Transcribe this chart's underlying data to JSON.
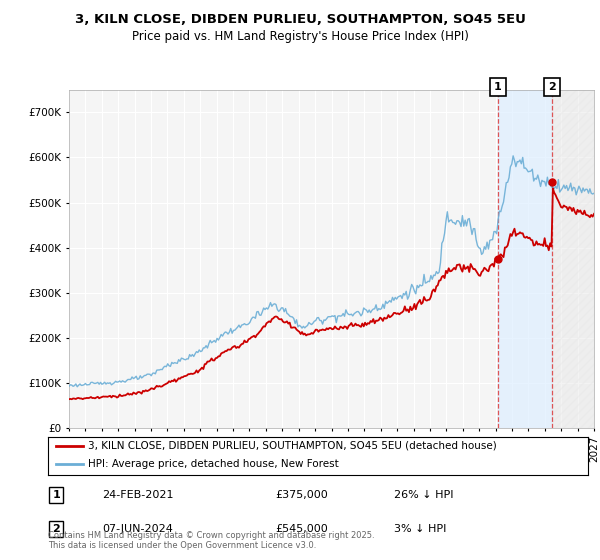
{
  "title_line1": "3, KILN CLOSE, DIBDEN PURLIEU, SOUTHAMPTON, SO45 5EU",
  "title_line2": "Price paid vs. HM Land Registry's House Price Index (HPI)",
  "ylim": [
    0,
    750000
  ],
  "yticks": [
    0,
    100000,
    200000,
    300000,
    400000,
    500000,
    600000,
    700000
  ],
  "ytick_labels": [
    "£0",
    "£100K",
    "£200K",
    "£300K",
    "£400K",
    "£500K",
    "£600K",
    "£700K"
  ],
  "transaction1_date": 2021.15,
  "transaction1_price": 375000,
  "transaction2_date": 2024.44,
  "transaction2_price": 545000,
  "hpi_color": "#6baed6",
  "price_color": "#cc0000",
  "legend_line1": "3, KILN CLOSE, DIBDEN PURLIEU, SOUTHAMPTON, SO45 5EU (detached house)",
  "legend_line2": "HPI: Average price, detached house, New Forest",
  "footnote": "Contains HM Land Registry data © Crown copyright and database right 2025.\nThis data is licensed under the Open Government Licence v3.0.",
  "background_color": "#ffffff",
  "plot_bg_color": "#f5f5f5",
  "grid_color": "#ffffff",
  "xlim_start": 1995,
  "xlim_end": 2027
}
